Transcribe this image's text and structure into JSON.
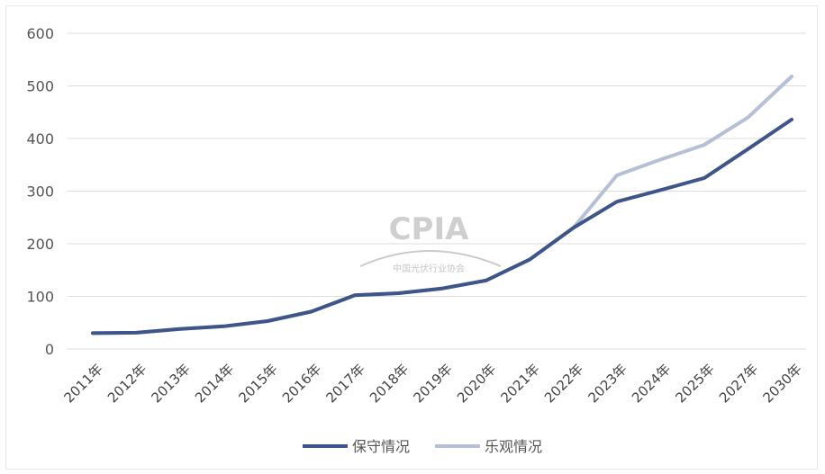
{
  "chart_data": {
    "type": "line",
    "categories": [
      "2011年",
      "2012年",
      "2013年",
      "2014年",
      "2015年",
      "2016年",
      "2017年",
      "2018年",
      "2019年",
      "2020年",
      "2021年",
      "2022年",
      "2023年",
      "2024年",
      "2025年",
      "2027年",
      "2030年"
    ],
    "series": [
      {
        "name": "保守情况",
        "color": "#3d5588",
        "values": [
          30,
          31,
          38,
          43,
          53,
          71,
          102,
          106,
          115,
          130,
          170,
          230,
          280,
          302,
          325,
          380,
          436
        ]
      },
      {
        "name": "乐观情况",
        "color": "#b5bfd5",
        "values": [
          30,
          31,
          38,
          43,
          53,
          71,
          102,
          106,
          115,
          130,
          170,
          230,
          330,
          360,
          388,
          440,
          518
        ]
      }
    ],
    "yticks": [
      0,
      100,
      200,
      300,
      400,
      500,
      600
    ],
    "ylim": [
      0,
      600
    ],
    "grid": true,
    "legend_position": "bottom-center"
  },
  "watermark": {
    "text": "CPIA",
    "subtext": "中国光伏行业协会"
  }
}
